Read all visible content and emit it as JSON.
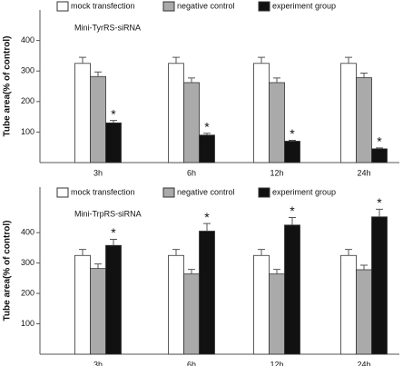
{
  "chart_data": [
    {
      "type": "bar",
      "subtitle": "Mini-TyrRS-siRNA",
      "y_label": "Tube area(% of control)",
      "categories": [
        "3h",
        "6h",
        "12h",
        "24h"
      ],
      "series": [
        {
          "name": "mock transfection",
          "color": "#ffffff",
          "values": [
            325,
            325,
            325,
            325
          ],
          "errors": [
            20,
            20,
            20,
            20
          ]
        },
        {
          "name": "negative control",
          "color": "#aaaaaa",
          "values": [
            282,
            262,
            262,
            278
          ],
          "errors": [
            15,
            15,
            15,
            15
          ]
        },
        {
          "name": "experiment group",
          "color": "#111111",
          "values": [
            130,
            90,
            70,
            45
          ],
          "errors": [
            8,
            6,
            3,
            3
          ]
        }
      ],
      "annotations": [
        "*",
        "*",
        "*",
        "*"
      ],
      "ylim": [
        0,
        500
      ],
      "yticks": [
        100,
        200,
        300,
        400
      ]
    },
    {
      "type": "bar",
      "subtitle": "Mini-TrpRS-siRNA",
      "y_label": "Tube area(% of control)",
      "categories": [
        "3h",
        "6h",
        "12h",
        "24h"
      ],
      "series": [
        {
          "name": "mock transfection",
          "color": "#ffffff",
          "values": [
            325,
            325,
            325,
            325
          ],
          "errors": [
            20,
            20,
            20,
            20
          ]
        },
        {
          "name": "negative control",
          "color": "#aaaaaa",
          "values": [
            282,
            264,
            264,
            278
          ],
          "errors": [
            15,
            15,
            15,
            15
          ]
        },
        {
          "name": "experiment group",
          "color": "#111111",
          "values": [
            358,
            405,
            425,
            452
          ],
          "errors": [
            20,
            25,
            25,
            25
          ]
        }
      ],
      "annotations": [
        "*",
        "*",
        "*",
        "*"
      ],
      "ylim": [
        0,
        550
      ],
      "yticks": [
        100,
        200,
        300,
        400
      ]
    }
  ]
}
